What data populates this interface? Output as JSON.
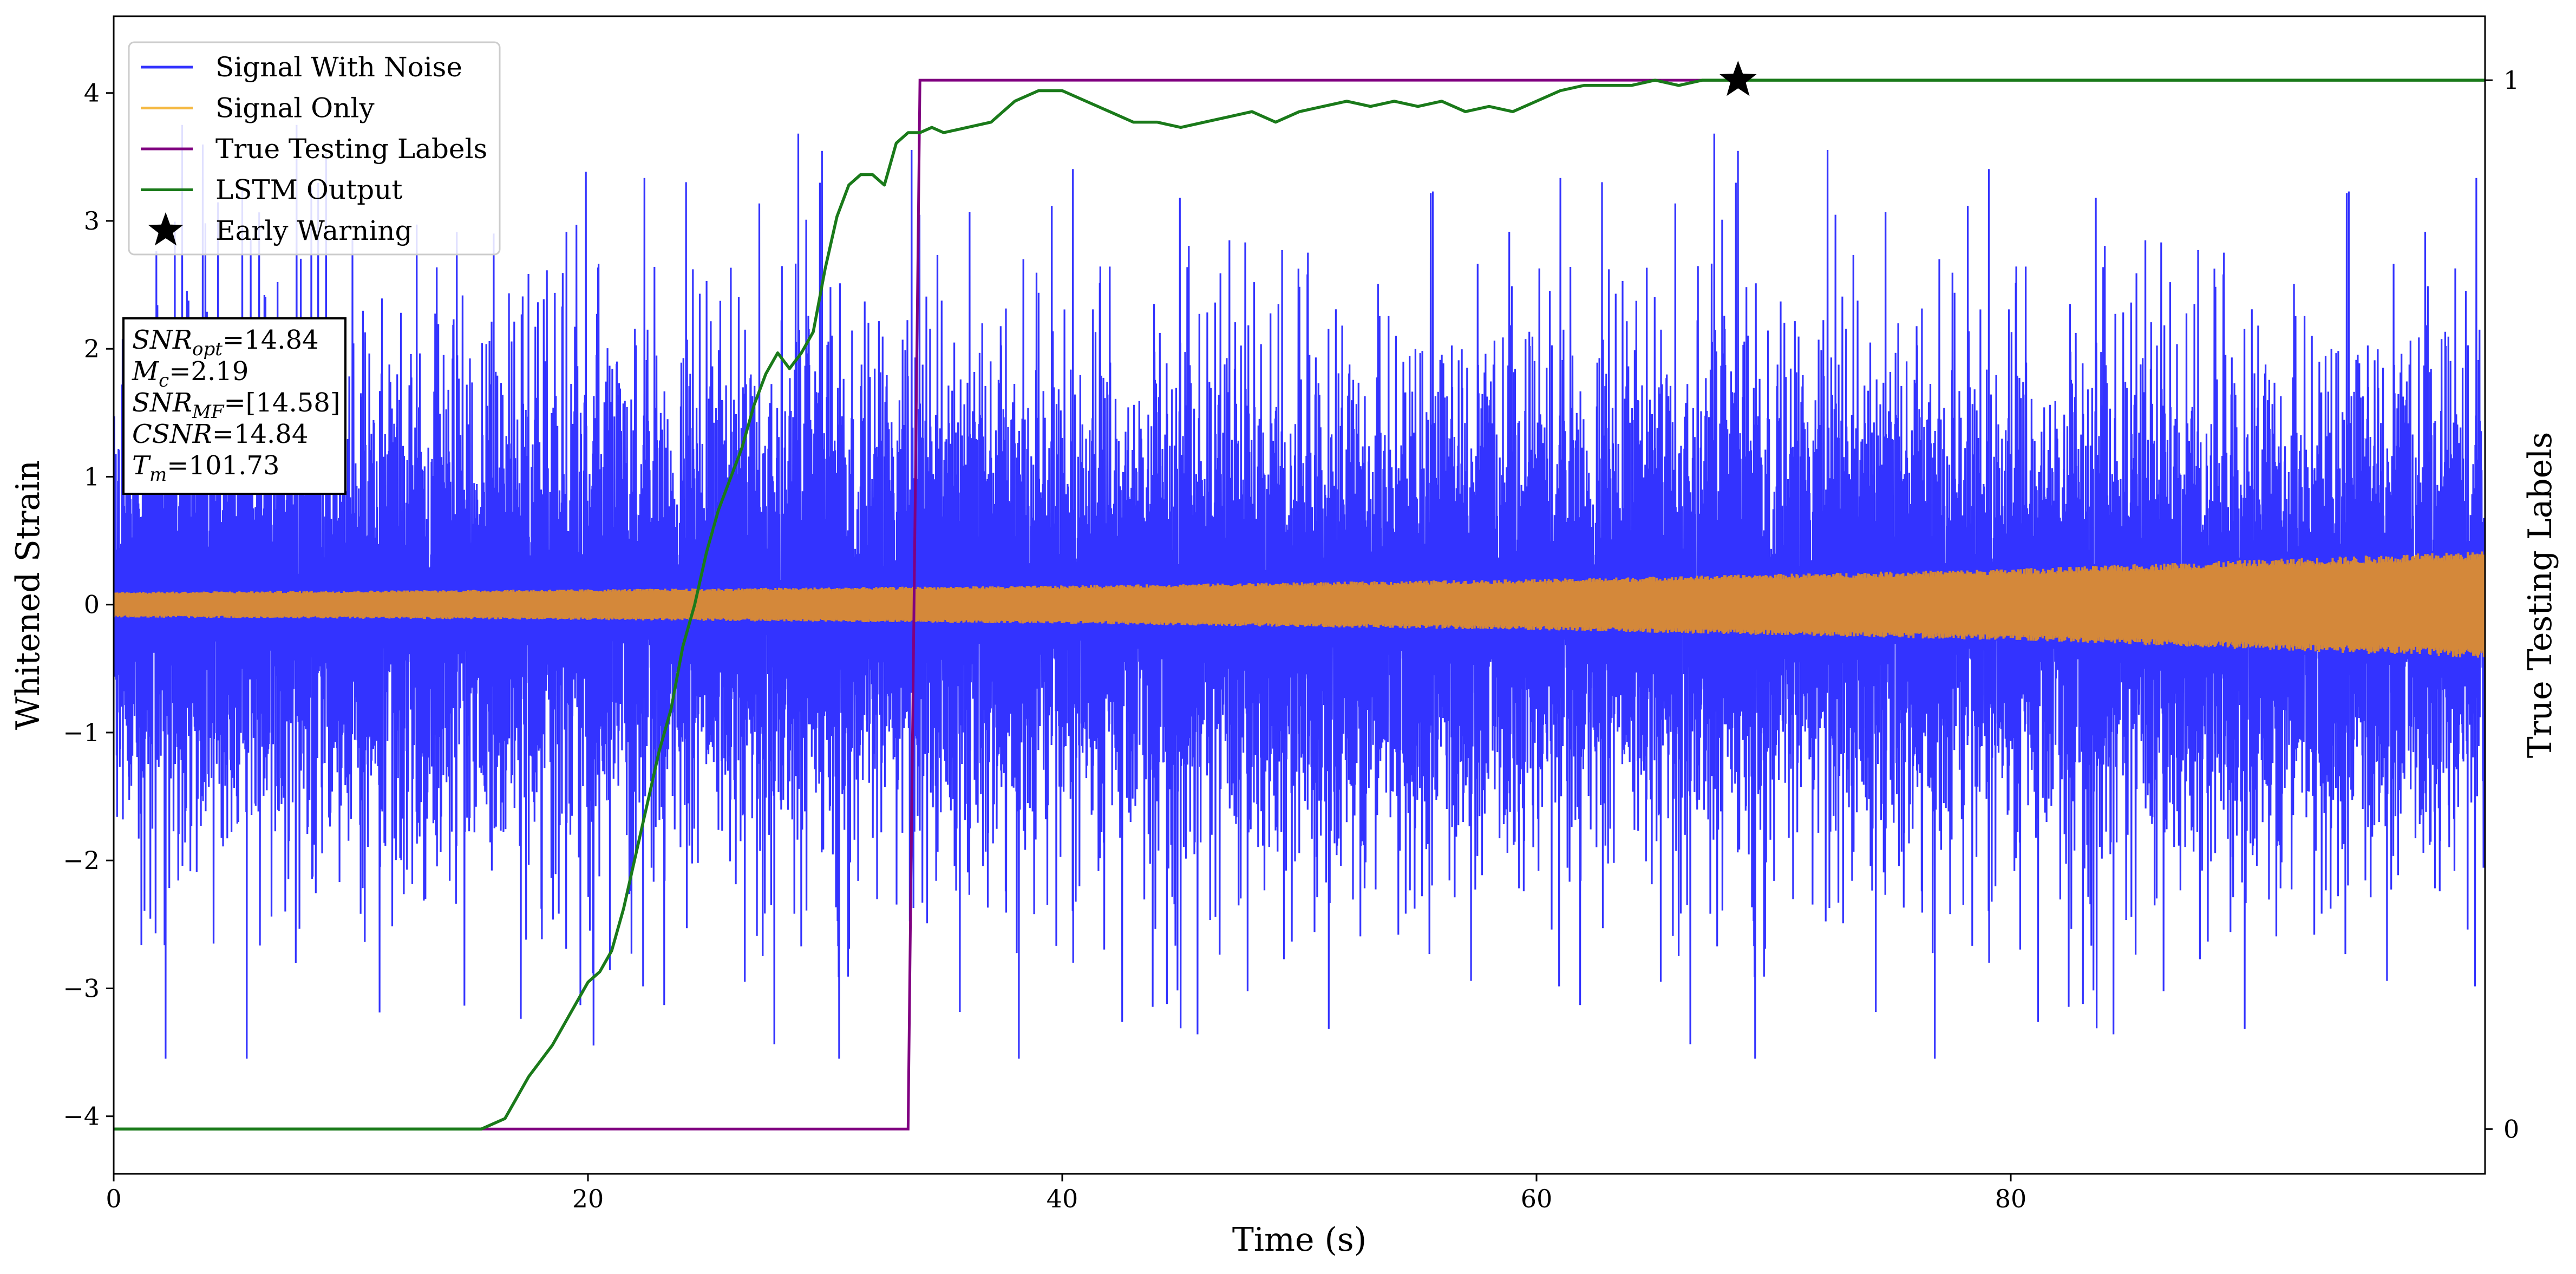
{
  "chart_data": {
    "type": "line",
    "xlabel": "Time (s)",
    "ylabel": "Whitened Strain",
    "ylabel_right": "True Testing Labels",
    "xlim": [
      0,
      100
    ],
    "ylim": [
      -4.45,
      4.6
    ],
    "xticks": [
      0,
      20,
      40,
      60,
      80
    ],
    "yticks": [
      -4,
      -3,
      -2,
      -1,
      0,
      1,
      2,
      3,
      4
    ],
    "yticks_right": [
      0,
      1
    ],
    "right_axis_map": {
      "value_0_at_strain": -4.1,
      "value_1_at_strain": 4.1
    },
    "grid": false,
    "legend_position": "top-left",
    "legend": [
      {
        "label": "Signal With Noise",
        "color": "#3333ff",
        "marker": "line"
      },
      {
        "label": "Signal Only",
        "color": "#f5b942",
        "marker": "line"
      },
      {
        "label": "True Testing Labels",
        "color": "#800080",
        "marker": "line"
      },
      {
        "label": "LSTM Output",
        "color": "#1a7a1a",
        "marker": "line"
      },
      {
        "label": "Early Warning",
        "color": "#000000",
        "marker": "star"
      }
    ],
    "info_box": [
      {
        "sym": "SNR",
        "sub": "opt",
        "rest": "=14.84"
      },
      {
        "sym": "M",
        "sub": "c",
        "rest": "=2.19"
      },
      {
        "sym": "SNR",
        "sub": "MF",
        "rest": "=[14.58]"
      },
      {
        "sym": "CSNR",
        "sub": "",
        "rest": "=14.84"
      },
      {
        "sym": "T",
        "sub": "m",
        "rest": "=101.73"
      }
    ],
    "series": [
      {
        "name": "Signal With Noise",
        "color": "#3333ff",
        "x_range": [
          0,
          100
        ],
        "noise_envelope": {
          "typical": [
            -1.6,
            1.6
          ],
          "extreme": [
            -3.55,
            3.75
          ]
        },
        "style": "dense noise"
      },
      {
        "name": "Signal Only",
        "color": "#d4883a",
        "x": [
          0,
          20,
          40,
          60,
          80,
          100
        ],
        "amplitude": [
          0.1,
          0.12,
          0.15,
          0.2,
          0.28,
          0.42
        ],
        "style": "chirp band"
      },
      {
        "name": "True Testing Labels",
        "color": "#800080",
        "x": [
          0,
          33.5,
          34.0,
          68.5
        ],
        "y": [
          0,
          0,
          1,
          1
        ]
      },
      {
        "name": "LSTM Output",
        "color": "#1a7a1a",
        "x": [
          0,
          15.5,
          16.5,
          17.0,
          17.5,
          18.5,
          19.5,
          20.0,
          20.5,
          21.0,
          21.5,
          22.0,
          22.5,
          23.0,
          23.5,
          24.0,
          24.5,
          25.0,
          25.5,
          26.0,
          26.5,
          27.0,
          27.5,
          28.0,
          28.5,
          29.0,
          29.5,
          30.0,
          30.5,
          31.0,
          31.5,
          32.0,
          32.5,
          33.0,
          33.5,
          34.0,
          34.5,
          35.0,
          36.0,
          37.0,
          38.0,
          39.0,
          40.0,
          41.0,
          42.0,
          43.0,
          44.0,
          45.0,
          46.0,
          47.0,
          48.0,
          49.0,
          50.0,
          51.0,
          52.0,
          53.0,
          54.0,
          55.0,
          56.0,
          57.0,
          58.0,
          59.0,
          60.0,
          61.0,
          62.0,
          63.0,
          64.0,
          65.0,
          66.0,
          67.0,
          68.0,
          69.0,
          70.0,
          100.0
        ],
        "y": [
          0,
          0,
          0.01,
          0.03,
          0.05,
          0.08,
          0.12,
          0.14,
          0.15,
          0.17,
          0.21,
          0.26,
          0.31,
          0.36,
          0.4,
          0.46,
          0.5,
          0.55,
          0.59,
          0.62,
          0.65,
          0.69,
          0.72,
          0.74,
          0.725,
          0.74,
          0.76,
          0.82,
          0.87,
          0.9,
          0.91,
          0.91,
          0.9,
          0.94,
          0.95,
          0.95,
          0.955,
          0.95,
          0.955,
          0.96,
          0.98,
          0.99,
          0.99,
          0.98,
          0.97,
          0.96,
          0.96,
          0.955,
          0.96,
          0.965,
          0.97,
          0.96,
          0.97,
          0.975,
          0.98,
          0.975,
          0.98,
          0.975,
          0.98,
          0.97,
          0.975,
          0.97,
          0.98,
          0.99,
          0.995,
          0.995,
          0.995,
          1.0,
          0.995,
          1.0,
          1.0,
          1.0,
          1.0,
          1.0
        ]
      },
      {
        "name": "Early Warning",
        "type": "marker",
        "marker": "star",
        "color": "#000000",
        "x": 68.5,
        "y": 1.0
      }
    ]
  }
}
